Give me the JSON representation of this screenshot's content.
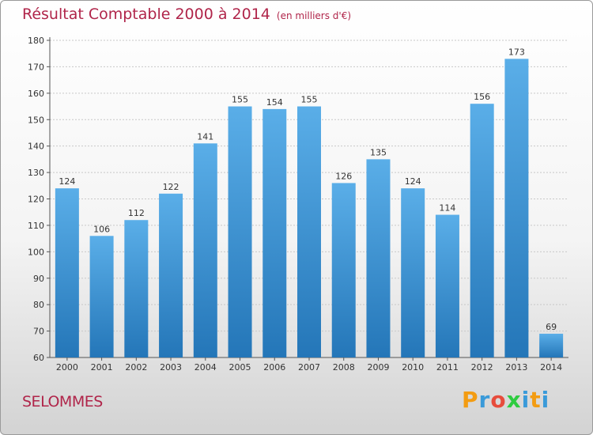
{
  "header": {
    "title": "Résultat Comptable 2000 à 2014",
    "subtitle": "(en milliers d'€)"
  },
  "footer": {
    "city": "SELOMMES",
    "logo": [
      "P",
      "r",
      "o",
      "x",
      "i",
      "t",
      "i"
    ]
  },
  "colors": {
    "title": "#b0254a",
    "bar_top": "#5aaee8",
    "bar_bottom": "#2476b8",
    "logo": [
      "#f39c12",
      "#3a9ad9",
      "#e74c3c",
      "#2ecc40",
      "#3a9ad9",
      "#f39c12",
      "#3a9ad9"
    ]
  },
  "chart_data": {
    "type": "bar",
    "categories": [
      "2000",
      "2001",
      "2002",
      "2003",
      "2004",
      "2005",
      "2006",
      "2007",
      "2008",
      "2009",
      "2010",
      "2011",
      "2012",
      "2013",
      "2014"
    ],
    "values": [
      124,
      106,
      112,
      122,
      141,
      155,
      154,
      155,
      126,
      135,
      124,
      114,
      156,
      173,
      69
    ],
    "ylim": [
      60,
      180
    ],
    "yticks": [
      60,
      70,
      80,
      90,
      100,
      110,
      120,
      130,
      140,
      150,
      160,
      170,
      180
    ],
    "grid": true
  }
}
